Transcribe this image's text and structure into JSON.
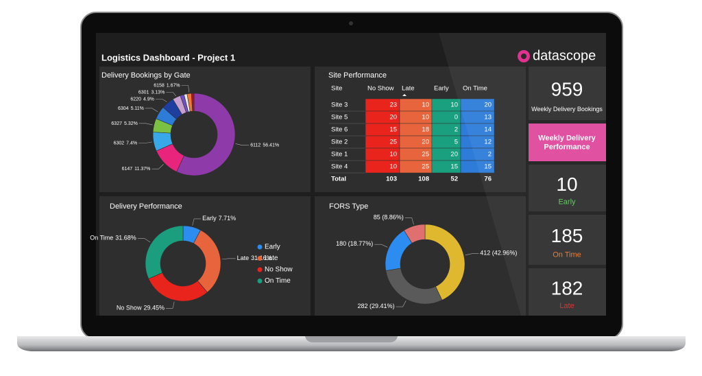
{
  "header": {
    "title": "Logistics Dashboard - Project 1",
    "brand": "datascope"
  },
  "chart_data": [
    {
      "type": "donut",
      "title": "Delivery Bookings by Gate",
      "categories": [
        "6112",
        "6147",
        "6302",
        "6327",
        "6304",
        "6220",
        "6301",
        null,
        null,
        "6158",
        null
      ],
      "values": [
        56.41,
        11.37,
        7.4,
        5.32,
        5.11,
        4.9,
        3.13,
        1.5,
        1.2,
        1.67,
        1.0
      ],
      "value_labels": [
        "56.41%",
        "11.37%",
        "7.4%",
        "5.32%",
        "5.11%",
        "4.9%",
        "3.13%",
        null,
        null,
        "1.67%",
        null
      ],
      "colors": [
        "#8e3aa8",
        "#e8247c",
        "#38a8e8",
        "#7ac043",
        "#2d7cd8",
        "#1f3fa0",
        "#c8a0d0",
        "#7050c0",
        "#e8e8e8",
        "#f07830",
        "#a01830"
      ]
    },
    {
      "type": "donut",
      "title": "Delivery Performance",
      "categories": [
        "Early",
        "Late",
        "No Show",
        "On Time"
      ],
      "values": [
        7.71,
        31.16,
        29.45,
        31.68
      ],
      "value_labels": [
        "7.71%",
        "31.16%",
        "29.45%",
        "31.68%"
      ],
      "colors": [
        "#2d8cf0",
        "#e8643c",
        "#e8241c",
        "#1a9e7e"
      ],
      "legend": "right"
    },
    {
      "type": "donut",
      "title": "FORS Type",
      "values": [
        412,
        282,
        180,
        85
      ],
      "value_labels": [
        "412 (42.96%)",
        "282 (29.41%)",
        "180 (18.77%)",
        "85 (8.86%)"
      ],
      "colors": [
        "#e0b830",
        "#5a5a5a",
        "#2d8cf0",
        "#e07070"
      ]
    }
  ],
  "table": {
    "title": "Site Performance",
    "columns": [
      "Site",
      "No Show",
      "Late",
      "Early",
      "On Time"
    ],
    "column_colors": [
      null,
      "#e8241c",
      "#e8643c",
      "#1aa07e",
      "#2d7cd8"
    ],
    "rows": [
      [
        "Site 3",
        23,
        10,
        10,
        20
      ],
      [
        "Site 5",
        20,
        10,
        0,
        13
      ],
      [
        "Site 6",
        15,
        18,
        2,
        14
      ],
      [
        "Site 2",
        25,
        20,
        5,
        12
      ],
      [
        "Site 1",
        10,
        25,
        20,
        2
      ],
      [
        "Site 4",
        10,
        25,
        15,
        15
      ]
    ],
    "total": [
      "Total",
      103,
      108,
      52,
      76
    ]
  },
  "kpis": [
    {
      "value": 959,
      "label": "Weekly Delivery Bookings",
      "color": "#ffffff"
    },
    {
      "label": "Weekly Delivery Performance",
      "color": "#ffffff"
    },
    {
      "value": 10,
      "label": "Early",
      "color": "#5cc85c"
    },
    {
      "value": 185,
      "label": "On Time",
      "color": "#e87830"
    },
    {
      "value": 182,
      "label": "Late",
      "color": "#e02828"
    }
  ]
}
